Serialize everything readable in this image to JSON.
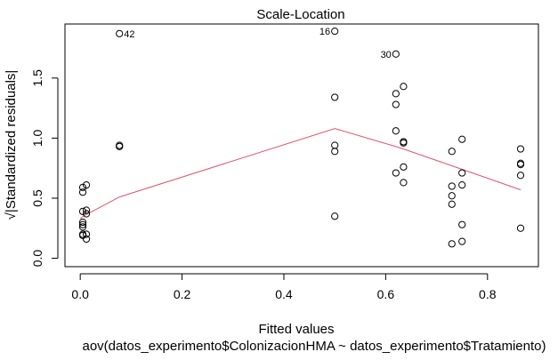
{
  "chart_data": {
    "type": "scatter",
    "title": "Scale-Location",
    "xlabel": "Fitted values",
    "ylabel": "√|Standardized residuals|",
    "subtitle": "aov(datos_experimento$ColonizacionHMA ~ datos_experimento$Tratamiento)",
    "xlim": [
      -0.03,
      0.9
    ],
    "ylim": [
      -0.07,
      1.95
    ],
    "xticks": [
      0.0,
      0.2,
      0.4,
      0.6,
      0.8
    ],
    "xtick_labels": [
      "0.0",
      "0.2",
      "0.4",
      "0.6",
      "0.8"
    ],
    "yticks": [
      0.0,
      0.5,
      1.0,
      1.5
    ],
    "ytick_labels": [
      "0.0",
      "0.5",
      "1.0",
      "1.5"
    ],
    "grid": false,
    "points": [
      {
        "x": 0.005,
        "y": 0.19
      },
      {
        "x": 0.005,
        "y": 0.2
      },
      {
        "x": 0.005,
        "y": 0.26
      },
      {
        "x": 0.005,
        "y": 0.28
      },
      {
        "x": 0.005,
        "y": 0.3
      },
      {
        "x": 0.005,
        "y": 0.39
      },
      {
        "x": 0.005,
        "y": 0.55
      },
      {
        "x": 0.005,
        "y": 0.59
      },
      {
        "x": 0.012,
        "y": 0.16
      },
      {
        "x": 0.012,
        "y": 0.2
      },
      {
        "x": 0.012,
        "y": 0.37
      },
      {
        "x": 0.012,
        "y": 0.4
      },
      {
        "x": 0.012,
        "y": 0.61
      },
      {
        "x": 0.077,
        "y": 1.87
      },
      {
        "x": 0.077,
        "y": 0.93
      },
      {
        "x": 0.077,
        "y": 0.94
      },
      {
        "x": 0.5,
        "y": 1.89
      },
      {
        "x": 0.5,
        "y": 1.34
      },
      {
        "x": 0.5,
        "y": 0.94
      },
      {
        "x": 0.5,
        "y": 0.89
      },
      {
        "x": 0.5,
        "y": 0.35
      },
      {
        "x": 0.62,
        "y": 1.7
      },
      {
        "x": 0.62,
        "y": 1.37
      },
      {
        "x": 0.62,
        "y": 1.28
      },
      {
        "x": 0.62,
        "y": 1.06
      },
      {
        "x": 0.62,
        "y": 0.71
      },
      {
        "x": 0.635,
        "y": 1.43
      },
      {
        "x": 0.635,
        "y": 0.97
      },
      {
        "x": 0.635,
        "y": 0.96
      },
      {
        "x": 0.635,
        "y": 0.76
      },
      {
        "x": 0.635,
        "y": 0.63
      },
      {
        "x": 0.73,
        "y": 0.89
      },
      {
        "x": 0.73,
        "y": 0.6
      },
      {
        "x": 0.73,
        "y": 0.52
      },
      {
        "x": 0.73,
        "y": 0.45
      },
      {
        "x": 0.73,
        "y": 0.12
      },
      {
        "x": 0.75,
        "y": 0.99
      },
      {
        "x": 0.75,
        "y": 0.71
      },
      {
        "x": 0.75,
        "y": 0.61
      },
      {
        "x": 0.75,
        "y": 0.28
      },
      {
        "x": 0.75,
        "y": 0.14
      },
      {
        "x": 0.865,
        "y": 0.91
      },
      {
        "x": 0.865,
        "y": 0.79
      },
      {
        "x": 0.865,
        "y": 0.78
      },
      {
        "x": 0.865,
        "y": 0.69
      },
      {
        "x": 0.865,
        "y": 0.25
      }
    ],
    "smoother": {
      "color": "#DF536B",
      "x": [
        0.0,
        0.01,
        0.077,
        0.5,
        0.62,
        0.635,
        0.73,
        0.75,
        0.865
      ],
      "y": [
        0.33,
        0.36,
        0.51,
        1.08,
        0.93,
        0.91,
        0.77,
        0.74,
        0.57
      ]
    },
    "annotations": [
      {
        "label": "42",
        "x": 0.077,
        "y": 1.87,
        "side": "right"
      },
      {
        "label": "16",
        "x": 0.5,
        "y": 1.89,
        "side": "left"
      },
      {
        "label": "30",
        "x": 0.62,
        "y": 1.7,
        "side": "left"
      }
    ]
  }
}
